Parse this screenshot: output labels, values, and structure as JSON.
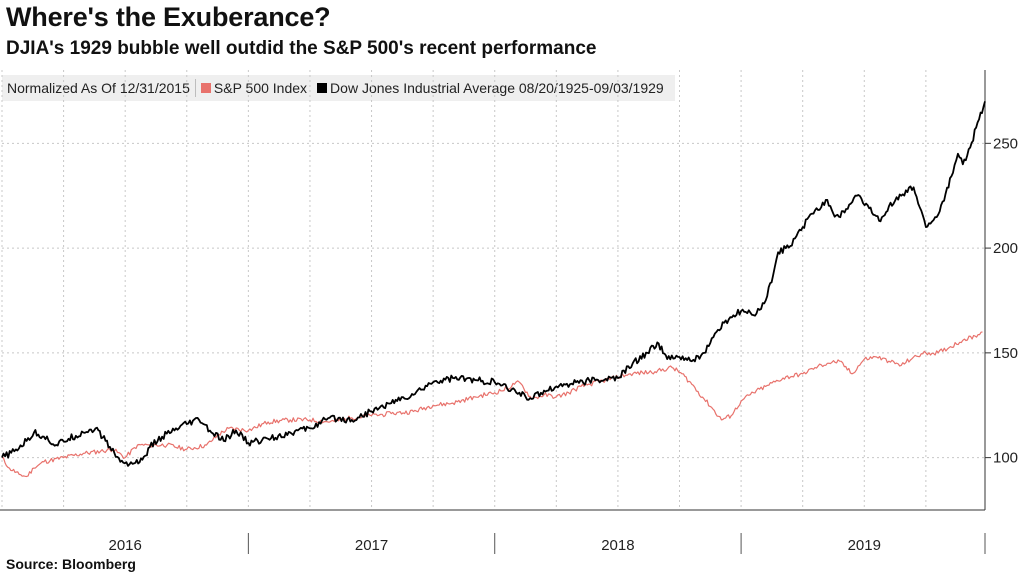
{
  "title": "Where's the Exuberance?",
  "subtitle": "DJIA's 1929 bubble well outdid the S&P 500's recent performance",
  "source": "Source: Bloomberg",
  "legend": {
    "normalized": "Normalized As Of 12/31/2015",
    "sp500": "S&P 500 Index",
    "djia": "Dow Jones Industrial Average 08/20/1925-09/03/1929"
  },
  "colors": {
    "sp500": "#e8726c",
    "djia": "#000000",
    "grid": "#c8c8c8",
    "legend_bg": "#efefef"
  },
  "chart_data": {
    "type": "line",
    "title": "Where's the Exuberance?",
    "subtitle": "DJIA's 1929 bubble well outdid the S&P 500's recent performance",
    "xlabel": "",
    "ylabel": "",
    "xlim": [
      2016.0,
      2019.99
    ],
    "ylim": [
      75,
      285
    ],
    "y_ticks": [
      100,
      150,
      200,
      250
    ],
    "y_tick_labels": [
      "100",
      "150",
      "200",
      "250"
    ],
    "x_year_labels": [
      {
        "label": "2016",
        "center": 2016.5
      },
      {
        "label": "2017",
        "center": 2017.5
      },
      {
        "label": "2018",
        "center": 2018.5
      },
      {
        "label": "2019",
        "center": 2019.5
      }
    ],
    "x_gridlines": [
      2016.0,
      2016.25,
      2016.5,
      2016.75,
      2017.0,
      2017.25,
      2017.5,
      2017.75,
      2018.0,
      2018.25,
      2018.5,
      2018.75,
      2019.0,
      2019.25,
      2019.5,
      2019.75
    ],
    "grid": true,
    "legend_position": "top-left",
    "series": [
      {
        "name": "S&P 500 Index",
        "color": "#e8726c",
        "x": [
          2016.0,
          2016.03,
          2016.07,
          2016.1,
          2016.13,
          2016.17,
          2016.25,
          2016.33,
          2016.4,
          2016.45,
          2016.5,
          2016.55,
          2016.6,
          2016.67,
          2016.75,
          2016.83,
          2016.88,
          2016.92,
          2017.0,
          2017.08,
          2017.17,
          2017.25,
          2017.33,
          2017.42,
          2017.5,
          2017.58,
          2017.67,
          2017.75,
          2017.83,
          2017.92,
          2018.0,
          2018.05,
          2018.08,
          2018.1,
          2018.15,
          2018.2,
          2018.25,
          2018.3,
          2018.35,
          2018.45,
          2018.55,
          2018.65,
          2018.72,
          2018.76,
          2018.8,
          2018.85,
          2018.88,
          2018.92,
          2018.96,
          2019.0,
          2019.05,
          2019.1,
          2019.17,
          2019.25,
          2019.3,
          2019.35,
          2019.4,
          2019.45,
          2019.5,
          2019.55,
          2019.6,
          2019.65,
          2019.7,
          2019.75,
          2019.8,
          2019.85,
          2019.9,
          2019.95,
          2019.98
        ],
        "values": [
          100,
          95,
          92,
          91,
          95,
          98,
          100,
          102,
          103,
          104,
          100,
          106,
          106,
          106,
          104,
          106,
          111,
          114,
          113,
          117,
          118,
          118,
          117,
          119,
          120,
          121,
          122,
          125,
          126,
          129,
          131,
          133,
          135,
          136,
          128,
          130,
          129,
          131,
          134,
          137,
          140,
          141,
          143,
          140,
          135,
          128,
          124,
          118,
          120,
          127,
          131,
          134,
          138,
          140,
          143,
          145,
          146,
          140,
          147,
          148,
          146,
          144,
          148,
          150,
          150,
          153,
          156,
          158,
          160
        ]
      },
      {
        "name": "Dow Jones Industrial Average 08/20/1925-09/03/1929",
        "color": "#000000",
        "x": [
          2016.0,
          2016.05,
          2016.1,
          2016.13,
          2016.17,
          2016.22,
          2016.27,
          2016.33,
          2016.38,
          2016.42,
          2016.48,
          2016.53,
          2016.57,
          2016.6,
          2016.65,
          2016.7,
          2016.75,
          2016.8,
          2016.85,
          2016.9,
          2016.95,
          2017.0,
          2017.08,
          2017.17,
          2017.25,
          2017.33,
          2017.42,
          2017.5,
          2017.58,
          2017.67,
          2017.75,
          2017.83,
          2017.92,
          2018.0,
          2018.05,
          2018.1,
          2018.15,
          2018.2,
          2018.25,
          2018.33,
          2018.42,
          2018.5,
          2018.56,
          2018.62,
          2018.66,
          2018.7,
          2018.75,
          2018.8,
          2018.85,
          2018.9,
          2018.95,
          2019.0,
          2019.05,
          2019.1,
          2019.13,
          2019.15,
          2019.2,
          2019.25,
          2019.3,
          2019.35,
          2019.38,
          2019.42,
          2019.47,
          2019.52,
          2019.56,
          2019.6,
          2019.65,
          2019.7,
          2019.75,
          2019.8,
          2019.83,
          2019.86,
          2019.88,
          2019.9,
          2019.93,
          2019.96,
          2019.99
        ],
        "values": [
          100,
          103,
          108,
          112,
          110,
          106,
          109,
          112,
          114,
          108,
          98,
          97,
          99,
          105,
          110,
          113,
          116,
          118,
          112,
          108,
          113,
          107,
          109,
          112,
          114,
          119,
          118,
          122,
          126,
          130,
          136,
          138,
          137,
          136,
          133,
          131,
          128,
          132,
          134,
          136,
          137,
          138,
          145,
          150,
          155,
          147,
          148,
          146,
          150,
          160,
          166,
          170,
          168,
          175,
          187,
          198,
          201,
          210,
          218,
          223,
          215,
          217,
          225,
          219,
          213,
          220,
          225,
          229,
          210,
          216,
          226,
          236,
          245,
          240,
          248,
          260,
          270
        ]
      }
    ]
  }
}
